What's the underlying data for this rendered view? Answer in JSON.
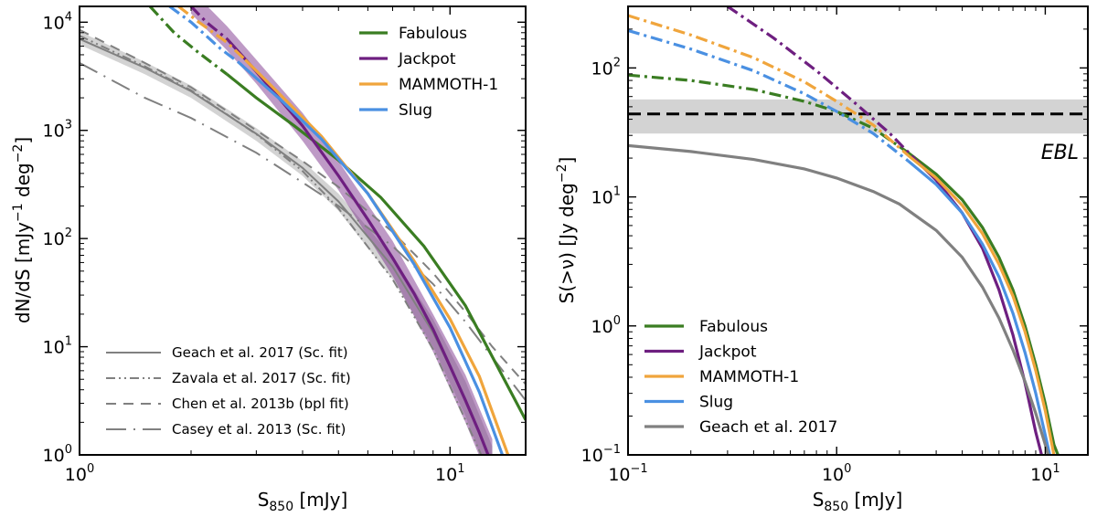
{
  "chart_data": [
    {
      "type": "line",
      "id": "left",
      "xlabel": "S",
      "xlabel_sub": "850",
      "xlabel_unit": " [mJy]",
      "ylabel": "dN/dS [mJy",
      "ylabel_sup1": "−1",
      "ylabel_mid": " deg",
      "ylabel_sup2": "−2",
      "ylabel_end": "]",
      "xscale": "log",
      "yscale": "log",
      "xlim": [
        1,
        16
      ],
      "ylim": [
        1,
        14000
      ],
      "xticks": [
        {
          "value": 1,
          "base": "10",
          "exp": "0"
        },
        {
          "value": 10,
          "base": "10",
          "exp": "1"
        }
      ],
      "yticks": [
        {
          "value": 1,
          "base": "10",
          "exp": "0"
        },
        {
          "value": 10,
          "base": "10",
          "exp": "1"
        },
        {
          "value": 100,
          "base": "10",
          "exp": "2"
        },
        {
          "value": 1000,
          "base": "10",
          "exp": "3"
        },
        {
          "value": 10000,
          "base": "10",
          "exp": "4"
        }
      ],
      "legend_model": [
        {
          "label": "Fabulous",
          "color": "#3a7d22"
        },
        {
          "label": "Jackpot",
          "color": "#6e1f80"
        },
        {
          "label": "MAMMOTH-1",
          "color": "#f0a53c"
        },
        {
          "label": "Slug",
          "color": "#4a90e2"
        }
      ],
      "legend_obs": [
        {
          "label": "Geach et al. 2017 (Sc. fit)",
          "style": "solid"
        },
        {
          "label": "Zavala et al. 2017 (Sc. fit)",
          "style": "dashdotdot"
        },
        {
          "label": "Chen et al. 2013b (bpl fit)",
          "style": "dashed"
        },
        {
          "label": "Casey et al. 2013 (Sc. fit)",
          "style": "longdashdot"
        }
      ],
      "series": [
        {
          "name": "Fabulous",
          "color": "#3a7d22",
          "segments": [
            {
              "style": "dashdot",
              "x": [
                1.55,
                1.8,
                2.1,
                2.5
              ],
              "y": [
                14000,
                8000,
                5200,
                3300
              ]
            },
            {
              "style": "solid",
              "x": [
                2.5,
                3,
                3.8,
                5,
                6.5,
                8.5,
                11,
                14,
                16
              ],
              "y": [
                3300,
                2000,
                1100,
                530,
                240,
                85,
                24,
                5,
                2.1
              ]
            }
          ]
        },
        {
          "name": "Jackpot",
          "color": "#6e1f80",
          "band": {
            "x": [
              2,
              2.5,
              3,
              4,
              5,
              7,
              9,
              11,
              13
            ],
            "ylo": [
              12000,
              5500,
              2700,
              800,
              280,
              45,
              9,
              2,
              0.5
            ],
            "yhi": [
              20000,
              9200,
              4500,
              1450,
              520,
              95,
              20,
              5.5,
              1.4
            ]
          },
          "segments": [
            {
              "style": "dashdot",
              "x": [
                2,
                2.2,
                2.5
              ],
              "y": [
                14000,
                10000,
                7000
              ]
            },
            {
              "style": "solid",
              "x": [
                2.5,
                3,
                4,
                5,
                6,
                7,
                8,
                9,
                10,
                11,
                12,
                13
              ],
              "y": [
                7000,
                3500,
                1100,
                380,
                150,
                66,
                31,
                14.5,
                6.6,
                3.2,
                1.6,
                0.8
              ]
            }
          ]
        },
        {
          "name": "MAMMOTH-1",
          "color": "#f0a53c",
          "segments": [
            {
              "style": "dashdot",
              "x": [
                1.85,
                2.1,
                2.5,
                2.8
              ],
              "y": [
                14000,
                10000,
                6500,
                4500
              ]
            },
            {
              "style": "solid",
              "x": [
                2.8,
                3.5,
                4.5,
                6,
                8,
                10,
                12,
                14.5
              ],
              "y": [
                4500,
                2100,
                880,
                260,
                62,
                18,
                5.3,
                0.9
              ]
            }
          ]
        },
        {
          "name": "Slug",
          "color": "#4a90e2",
          "segments": [
            {
              "style": "dashdot",
              "x": [
                1.75,
                2,
                2.4,
                2.7
              ],
              "y": [
                14000,
                10000,
                5700,
                4200
              ]
            },
            {
              "style": "solid",
              "x": [
                2.7,
                3.5,
                4.5,
                6,
                8,
                10,
                12,
                14
              ],
              "y": [
                4200,
                1900,
                830,
                260,
                58,
                15,
                3.8,
                0.9
              ]
            }
          ]
        }
      ],
      "obs_series": [
        {
          "name": "Geach et al. 2017 (Sc. fit)",
          "style": "solid",
          "band": {
            "x": [
              1,
              1.5,
              2,
              3,
              4,
              5,
              7,
              9,
              11,
              13
            ],
            "ylo": [
              6200,
              3300,
              2000,
              800,
              380,
              180,
              42,
              10,
              2.3,
              0.5
            ],
            "yhi": [
              8200,
              4300,
              2600,
              1050,
              520,
              260,
              68,
              18,
              4.8,
              1.2
            ]
          },
          "x": [
            1,
            1.5,
            2,
            3,
            4,
            5,
            7,
            9,
            11,
            13
          ],
          "y": [
            7000,
            3800,
            2300,
            930,
            450,
            220,
            55,
            13.5,
            3.3,
            0.8
          ]
        },
        {
          "name": "Zavala et al. 2017 (Sc. fit)",
          "style": "dashdotdot",
          "x": [
            1,
            1.5,
            2,
            3,
            4,
            5,
            7,
            9,
            11,
            12.5
          ],
          "y": [
            7500,
            3900,
            2350,
            920,
            420,
            190,
            42,
            9.5,
            2.1,
            0.8
          ]
        },
        {
          "name": "Chen et al. 2013b (bpl fit)",
          "style": "dashed",
          "x": [
            1,
            1.5,
            2,
            3,
            4,
            5,
            7,
            9,
            11,
            13,
            16
          ],
          "y": [
            8500,
            4200,
            2500,
            1000,
            520,
            300,
            115,
            48,
            21,
            10,
            4.5
          ]
        },
        {
          "name": "Casey et al. 2013 (Sc. fit)",
          "style": "longdashdot",
          "x": [
            1,
            1.5,
            2,
            3,
            4,
            5,
            7,
            9,
            11,
            13,
            16
          ],
          "y": [
            4200,
            2000,
            1300,
            620,
            330,
            200,
            85,
            38,
            17,
            8,
            3.2
          ]
        }
      ]
    },
    {
      "type": "line",
      "id": "right",
      "xlabel": "S",
      "xlabel_sub": "850",
      "xlabel_unit": " [mJy]",
      "ylabel": "S(>ν) [Jy deg",
      "ylabel_sup": "−2",
      "ylabel_end": "]",
      "xscale": "log",
      "yscale": "log",
      "xlim": [
        0.1,
        16
      ],
      "ylim": [
        0.1,
        300
      ],
      "xticks": [
        {
          "value": 0.1,
          "base": "10",
          "exp": "−1"
        },
        {
          "value": 1,
          "base": "10",
          "exp": "0"
        },
        {
          "value": 10,
          "base": "10",
          "exp": "1"
        }
      ],
      "yticks": [
        {
          "value": 0.1,
          "base": "10",
          "exp": "−1"
        },
        {
          "value": 1,
          "base": "10",
          "exp": "0"
        },
        {
          "value": 10,
          "base": "10",
          "exp": "1"
        },
        {
          "value": 100,
          "base": "10",
          "exp": "2"
        }
      ],
      "ebl": {
        "label": "EBL",
        "value": 44,
        "lo": 31,
        "hi": 57
      },
      "legend": [
        {
          "label": "Fabulous",
          "color": "#3a7d22"
        },
        {
          "label": "Jackpot",
          "color": "#6e1f80"
        },
        {
          "label": "MAMMOTH-1",
          "color": "#f0a53c"
        },
        {
          "label": "Slug",
          "color": "#4a90e2"
        },
        {
          "label": "Geach et al. 2017",
          "color": "#808080"
        }
      ],
      "series": [
        {
          "name": "Fabulous",
          "color": "#3a7d22",
          "segments": [
            {
              "style": "dashdot",
              "x": [
                0.1,
                0.2,
                0.4,
                0.7,
                1,
                1.5,
                2.2
              ],
              "y": [
                88,
                80,
                68,
                55,
                46,
                34,
                22
              ]
            },
            {
              "style": "solid",
              "x": [
                2.2,
                3,
                4,
                5,
                6,
                7,
                8,
                9,
                10,
                11,
                11.5
              ],
              "y": [
                22,
                15,
                9.5,
                5.8,
                3.4,
                1.9,
                1,
                0.5,
                0.25,
                0.12,
                0.1
              ]
            }
          ]
        },
        {
          "name": "Jackpot",
          "color": "#6e1f80",
          "segments": [
            {
              "style": "dashdot",
              "x": [
                0.3,
                0.5,
                0.8,
                1.2,
                1.8,
                2.5
              ],
              "y": [
                300,
                170,
                95,
                55,
                31,
                18
              ]
            },
            {
              "style": "solid",
              "x": [
                2.5,
                3,
                4,
                5,
                6,
                7,
                8,
                9,
                9.6
              ],
              "y": [
                18,
                13.5,
                7.5,
                4,
                1.9,
                0.85,
                0.36,
                0.15,
                0.1
              ]
            }
          ]
        },
        {
          "name": "MAMMOTH-1",
          "color": "#f0a53c",
          "segments": [
            {
              "style": "dashdot",
              "x": [
                0.1,
                0.2,
                0.4,
                0.7,
                1,
                1.5,
                2.2
              ],
              "y": [
                255,
                180,
                120,
                78,
                55,
                36,
                21
              ]
            },
            {
              "style": "solid",
              "x": [
                2.2,
                3,
                4,
                5,
                6,
                7,
                8,
                9,
                10,
                11
              ],
              "y": [
                21,
                14,
                8.6,
                5.2,
                3,
                1.7,
                0.9,
                0.45,
                0.22,
                0.1
              ]
            }
          ]
        },
        {
          "name": "Slug",
          "color": "#4a90e2",
          "segments": [
            {
              "style": "dashdot",
              "x": [
                0.1,
                0.2,
                0.4,
                0.7,
                1,
                1.5,
                2.2
              ],
              "y": [
                195,
                140,
                95,
                63,
                46,
                31,
                19
              ]
            },
            {
              "style": "solid",
              "x": [
                2.2,
                3,
                4,
                5,
                6,
                7,
                8,
                9,
                10.5
              ],
              "y": [
                19,
                12.5,
                7.5,
                4.3,
                2.4,
                1.25,
                0.62,
                0.3,
                0.1
              ]
            }
          ]
        },
        {
          "name": "Geach et al. 2017",
          "color": "#808080",
          "segments": [
            {
              "style": "solid",
              "x": [
                0.1,
                0.2,
                0.4,
                0.7,
                1,
                1.5,
                2,
                3,
                4,
                5,
                6,
                7,
                8,
                9,
                10,
                11
              ],
              "y": [
                25,
                22.5,
                19.5,
                16.5,
                14,
                11,
                8.8,
                5.5,
                3.4,
                2,
                1.15,
                0.65,
                0.37,
                0.21,
                0.12,
                0.07
              ]
            }
          ]
        }
      ]
    }
  ]
}
